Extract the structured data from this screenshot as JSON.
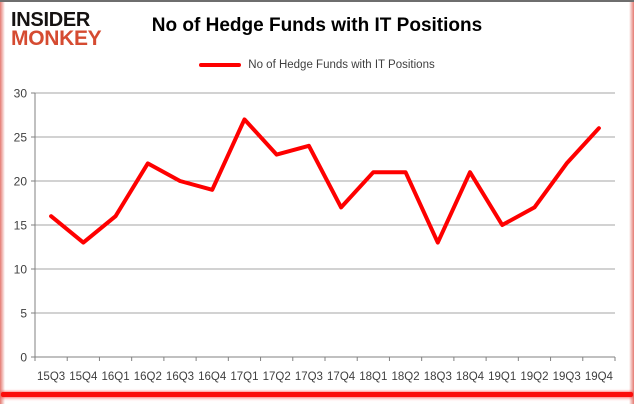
{
  "title": "No of Hedge Funds with IT Positions",
  "logo": {
    "line1": "INSIDER",
    "line2": "MONKEY"
  },
  "legend": {
    "label": "No of Hedge Funds with IT Positions"
  },
  "colors": {
    "accent_red": "#fe0000",
    "logo_red": "#d54b31",
    "grid": "#a6a6a6",
    "axis": "#808080",
    "tick_text": "#3f3f3f",
    "bottom_bar": "#fb0d0b"
  },
  "chart_data": {
    "type": "line",
    "title": "No of Hedge Funds with IT Positions",
    "categories": [
      "15Q3",
      "15Q4",
      "16Q1",
      "16Q2",
      "16Q3",
      "16Q4",
      "17Q1",
      "17Q2",
      "17Q3",
      "17Q4",
      "18Q1",
      "18Q2",
      "18Q3",
      "18Q4",
      "19Q1",
      "19Q2",
      "19Q3",
      "19Q4"
    ],
    "series": [
      {
        "name": "No of Hedge Funds with IT Positions",
        "color": "#fe0000",
        "values": [
          16,
          13,
          16,
          22,
          20,
          19,
          27,
          23,
          24,
          17,
          21,
          21,
          13,
          21,
          15,
          17,
          22,
          26
        ]
      }
    ],
    "xlabel": "",
    "ylabel": "",
    "ylim": [
      0,
      30
    ],
    "yticks": [
      0,
      5,
      10,
      15,
      20,
      25,
      30
    ],
    "grid": true,
    "legend_position": "top"
  }
}
